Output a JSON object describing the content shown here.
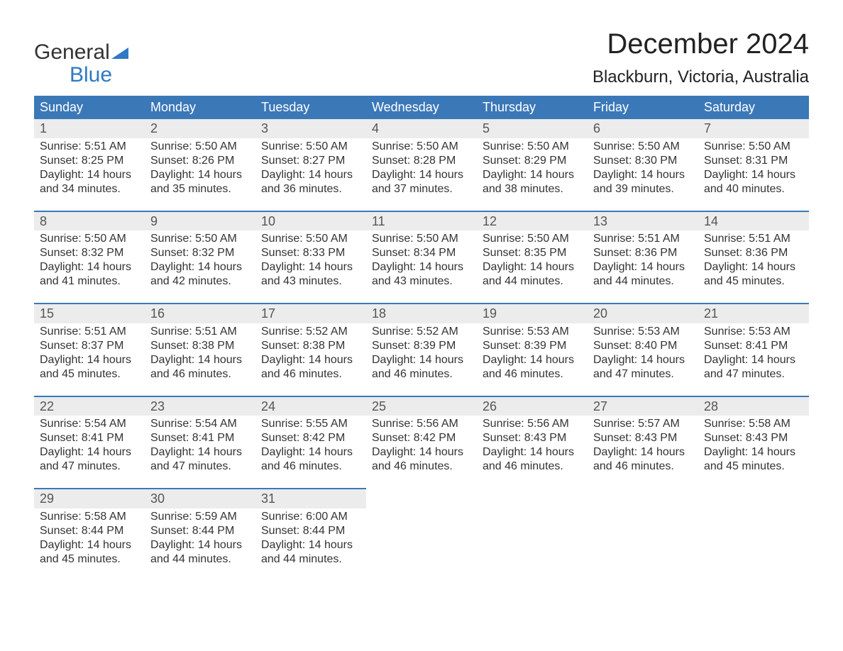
{
  "logo": {
    "word1": "General",
    "word2": "Blue"
  },
  "title": "December 2024",
  "location": "Blackburn, Victoria, Australia",
  "colors": {
    "header_bg": "#3b78b8",
    "header_text": "#ffffff",
    "number_bar_bg": "#ececec",
    "number_bar_border": "#3b78b8",
    "body_text": "#333333",
    "logo_accent": "#2f78c4",
    "page_bg": "#ffffff"
  },
  "typography": {
    "month_title_size": 40,
    "location_size": 24,
    "header_size": 18,
    "cell_size": 16,
    "logo_size": 30
  },
  "layout": {
    "columns": 7,
    "rows": 5,
    "start_weekday_index": 0
  },
  "weekday_labels": [
    "Sunday",
    "Monday",
    "Tuesday",
    "Wednesday",
    "Thursday",
    "Friday",
    "Saturday"
  ],
  "field_labels": {
    "sunrise": "Sunrise: ",
    "sunset": "Sunset: ",
    "daylight_prefix": "Daylight: ",
    "daylight_join": " and ",
    "daylight_suffix": "."
  },
  "days": [
    {
      "n": 1,
      "sunrise": "5:51 AM",
      "sunset": "8:25 PM",
      "dl_h": 14,
      "dl_m": 34
    },
    {
      "n": 2,
      "sunrise": "5:50 AM",
      "sunset": "8:26 PM",
      "dl_h": 14,
      "dl_m": 35
    },
    {
      "n": 3,
      "sunrise": "5:50 AM",
      "sunset": "8:27 PM",
      "dl_h": 14,
      "dl_m": 36
    },
    {
      "n": 4,
      "sunrise": "5:50 AM",
      "sunset": "8:28 PM",
      "dl_h": 14,
      "dl_m": 37
    },
    {
      "n": 5,
      "sunrise": "5:50 AM",
      "sunset": "8:29 PM",
      "dl_h": 14,
      "dl_m": 38
    },
    {
      "n": 6,
      "sunrise": "5:50 AM",
      "sunset": "8:30 PM",
      "dl_h": 14,
      "dl_m": 39
    },
    {
      "n": 7,
      "sunrise": "5:50 AM",
      "sunset": "8:31 PM",
      "dl_h": 14,
      "dl_m": 40
    },
    {
      "n": 8,
      "sunrise": "5:50 AM",
      "sunset": "8:32 PM",
      "dl_h": 14,
      "dl_m": 41
    },
    {
      "n": 9,
      "sunrise": "5:50 AM",
      "sunset": "8:32 PM",
      "dl_h": 14,
      "dl_m": 42
    },
    {
      "n": 10,
      "sunrise": "5:50 AM",
      "sunset": "8:33 PM",
      "dl_h": 14,
      "dl_m": 43
    },
    {
      "n": 11,
      "sunrise": "5:50 AM",
      "sunset": "8:34 PM",
      "dl_h": 14,
      "dl_m": 43
    },
    {
      "n": 12,
      "sunrise": "5:50 AM",
      "sunset": "8:35 PM",
      "dl_h": 14,
      "dl_m": 44
    },
    {
      "n": 13,
      "sunrise": "5:51 AM",
      "sunset": "8:36 PM",
      "dl_h": 14,
      "dl_m": 44
    },
    {
      "n": 14,
      "sunrise": "5:51 AM",
      "sunset": "8:36 PM",
      "dl_h": 14,
      "dl_m": 45
    },
    {
      "n": 15,
      "sunrise": "5:51 AM",
      "sunset": "8:37 PM",
      "dl_h": 14,
      "dl_m": 45
    },
    {
      "n": 16,
      "sunrise": "5:51 AM",
      "sunset": "8:38 PM",
      "dl_h": 14,
      "dl_m": 46
    },
    {
      "n": 17,
      "sunrise": "5:52 AM",
      "sunset": "8:38 PM",
      "dl_h": 14,
      "dl_m": 46
    },
    {
      "n": 18,
      "sunrise": "5:52 AM",
      "sunset": "8:39 PM",
      "dl_h": 14,
      "dl_m": 46
    },
    {
      "n": 19,
      "sunrise": "5:53 AM",
      "sunset": "8:39 PM",
      "dl_h": 14,
      "dl_m": 46
    },
    {
      "n": 20,
      "sunrise": "5:53 AM",
      "sunset": "8:40 PM",
      "dl_h": 14,
      "dl_m": 47
    },
    {
      "n": 21,
      "sunrise": "5:53 AM",
      "sunset": "8:41 PM",
      "dl_h": 14,
      "dl_m": 47
    },
    {
      "n": 22,
      "sunrise": "5:54 AM",
      "sunset": "8:41 PM",
      "dl_h": 14,
      "dl_m": 47
    },
    {
      "n": 23,
      "sunrise": "5:54 AM",
      "sunset": "8:41 PM",
      "dl_h": 14,
      "dl_m": 47
    },
    {
      "n": 24,
      "sunrise": "5:55 AM",
      "sunset": "8:42 PM",
      "dl_h": 14,
      "dl_m": 46
    },
    {
      "n": 25,
      "sunrise": "5:56 AM",
      "sunset": "8:42 PM",
      "dl_h": 14,
      "dl_m": 46
    },
    {
      "n": 26,
      "sunrise": "5:56 AM",
      "sunset": "8:43 PM",
      "dl_h": 14,
      "dl_m": 46
    },
    {
      "n": 27,
      "sunrise": "5:57 AM",
      "sunset": "8:43 PM",
      "dl_h": 14,
      "dl_m": 46
    },
    {
      "n": 28,
      "sunrise": "5:58 AM",
      "sunset": "8:43 PM",
      "dl_h": 14,
      "dl_m": 45
    },
    {
      "n": 29,
      "sunrise": "5:58 AM",
      "sunset": "8:44 PM",
      "dl_h": 14,
      "dl_m": 45
    },
    {
      "n": 30,
      "sunrise": "5:59 AM",
      "sunset": "8:44 PM",
      "dl_h": 14,
      "dl_m": 44
    },
    {
      "n": 31,
      "sunrise": "6:00 AM",
      "sunset": "8:44 PM",
      "dl_h": 14,
      "dl_m": 44
    }
  ]
}
